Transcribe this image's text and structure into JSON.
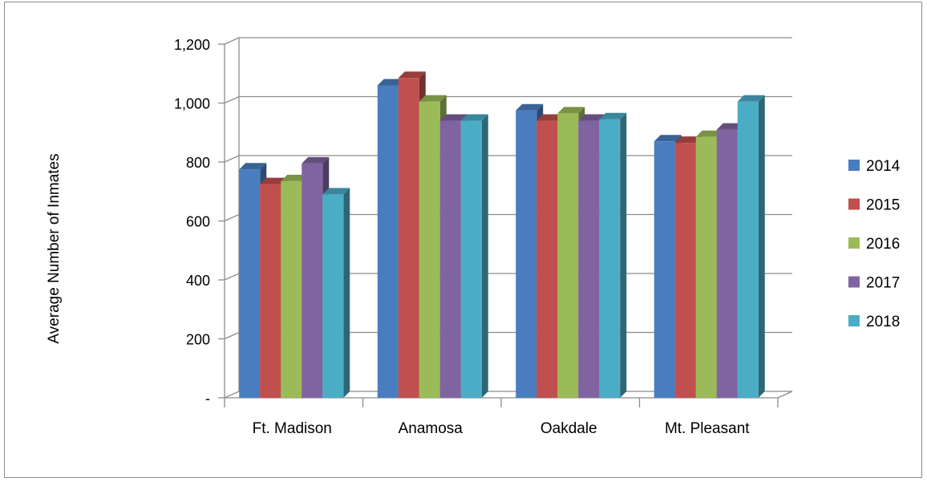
{
  "chart_data": {
    "type": "bar",
    "title": "",
    "xlabel": "",
    "ylabel": "Average Number of Inmates",
    "categories": [
      "Ft. Madison",
      "Anamosa",
      "Oakdale",
      "Mt. Pleasant"
    ],
    "series": [
      {
        "name": "2014",
        "color": "#4a7dbf",
        "values": [
          775,
          1060,
          975,
          870
        ]
      },
      {
        "name": "2015",
        "color": "#c0504d",
        "values": [
          725,
          1085,
          940,
          865
        ]
      },
      {
        "name": "2016",
        "color": "#9bbb59",
        "values": [
          735,
          1005,
          965,
          885
        ]
      },
      {
        "name": "2017",
        "color": "#8064a2",
        "values": [
          795,
          940,
          940,
          910
        ]
      },
      {
        "name": "2018",
        "color": "#4bacc6",
        "values": [
          690,
          940,
          945,
          1005
        ]
      }
    ],
    "ylim": [
      0,
      1200
    ],
    "yticks": [
      0,
      200,
      400,
      600,
      800,
      1000,
      1200
    ],
    "ytick_labels": [
      "-",
      "200",
      "400",
      "600",
      "800",
      "1,000",
      "1,200"
    ],
    "grid": true,
    "legend_position": "right",
    "style": "3d-clustered-column"
  }
}
